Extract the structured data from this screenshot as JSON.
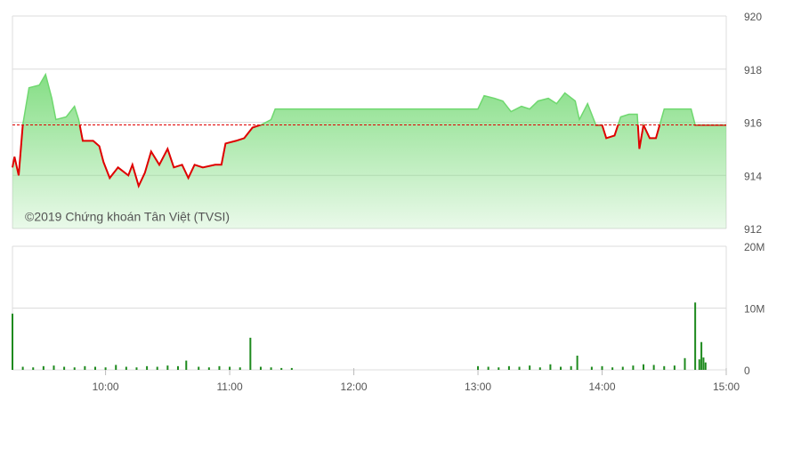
{
  "chart_data": [
    {
      "type": "area",
      "annotation": "©2019 Chứng khoán Tân Việt (TVSI)",
      "xlim": [
        "9:15",
        "15:00"
      ],
      "ylim": [
        912,
        920
      ],
      "yticks": [
        912,
        914,
        916,
        918,
        920
      ],
      "reference_price": 915.9,
      "grid": true,
      "color": "#6fd86f",
      "below_color": "#e00000",
      "x": [
        "9:15",
        "9:16",
        "9:18",
        "9:20",
        "9:23",
        "9:28",
        "9:31",
        "9:34",
        "9:36",
        "9:41",
        "9:45",
        "9:47",
        "9:49",
        "9:54",
        "9:57",
        "9:59",
        "10:02",
        "10:06",
        "10:11",
        "10:13",
        "10:16",
        "10:19",
        "10:22",
        "10:26",
        "10:30",
        "10:33",
        "10:37",
        "10:40",
        "10:43",
        "10:47",
        "10:53",
        "10:56",
        "10:58",
        "11:03",
        "11:07",
        "11:11",
        "11:15",
        "11:20",
        "11:22",
        "11:26",
        "11:30",
        "13:00",
        "13:03",
        "13:08",
        "13:12",
        "13:16",
        "13:21",
        "13:25",
        "13:29",
        "13:34",
        "13:38",
        "13:42",
        "13:47",
        "13:49",
        "13:53",
        "13:57",
        "14:00",
        "14:02",
        "14:06",
        "14:09",
        "14:13",
        "14:17",
        "14:18",
        "14:20",
        "14:23",
        "14:26",
        "14:30",
        "14:37",
        "14:43",
        "14:45",
        "15:00"
      ],
      "values": [
        914.3,
        914.7,
        914.0,
        915.9,
        917.3,
        917.4,
        917.8,
        916.9,
        916.1,
        916.2,
        916.6,
        916.1,
        915.3,
        915.3,
        915.1,
        914.5,
        913.9,
        914.3,
        914.0,
        914.4,
        913.6,
        914.1,
        914.9,
        914.4,
        915.0,
        914.3,
        914.4,
        913.9,
        914.4,
        914.3,
        914.4,
        914.4,
        915.2,
        915.3,
        915.4,
        915.8,
        915.9,
        916.1,
        916.5,
        916.5,
        916.5,
        916.5,
        917.0,
        916.9,
        916.8,
        916.4,
        916.6,
        916.5,
        916.8,
        916.9,
        916.7,
        917.1,
        916.8,
        916.1,
        916.7,
        915.9,
        915.9,
        915.4,
        915.5,
        916.2,
        916.3,
        916.3,
        915.0,
        915.9,
        915.4,
        915.4,
        916.5,
        916.5,
        916.5,
        915.9,
        915.9
      ]
    },
    {
      "type": "bar",
      "xlim": [
        "9:15",
        "15:00"
      ],
      "ylim": [
        0,
        20000000
      ],
      "yticks": [
        0,
        {
          "value": 10000000,
          "label": "10M"
        },
        {
          "value": 20000000,
          "label": "20M"
        }
      ],
      "xticks": [
        "10:00",
        "11:00",
        "12:00",
        "13:00",
        "14:00",
        "15:00"
      ],
      "grid": true,
      "color": "#1e8a1e",
      "x": [
        "9:15",
        "9:20",
        "9:25",
        "9:30",
        "9:35",
        "9:40",
        "9:45",
        "9:50",
        "9:55",
        "10:00",
        "10:05",
        "10:10",
        "10:15",
        "10:20",
        "10:25",
        "10:30",
        "10:35",
        "10:39",
        "10:45",
        "10:50",
        "10:55",
        "11:00",
        "11:05",
        "11:10",
        "11:15",
        "11:20",
        "11:25",
        "11:30",
        "13:00",
        "13:05",
        "13:10",
        "13:15",
        "13:20",
        "13:25",
        "13:30",
        "13:35",
        "13:40",
        "13:45",
        "13:48",
        "13:55",
        "14:00",
        "14:05",
        "14:10",
        "14:15",
        "14:20",
        "14:25",
        "14:30",
        "14:35",
        "14:40",
        "14:45",
        "14:47",
        "14:48",
        "14:49",
        "14:50"
      ],
      "values": [
        9100000,
        500000,
        400000,
        600000,
        700000,
        500000,
        400000,
        600000,
        500000,
        400000,
        800000,
        500000,
        400000,
        600000,
        500000,
        700000,
        600000,
        1500000,
        500000,
        400000,
        600000,
        500000,
        400000,
        5200000,
        500000,
        400000,
        300000,
        300000,
        600000,
        500000,
        400000,
        600000,
        500000,
        700000,
        400000,
        900000,
        500000,
        600000,
        2300000,
        500000,
        600000,
        400000,
        500000,
        700000,
        900000,
        800000,
        600000,
        700000,
        1900000,
        10900000,
        1700000,
        4500000,
        2000000,
        1200000
      ]
    }
  ]
}
